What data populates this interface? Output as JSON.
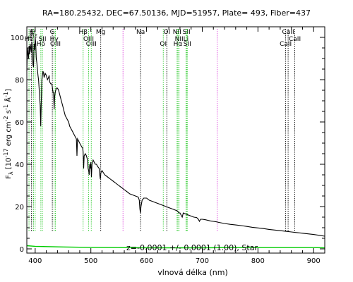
{
  "chart_data": {
    "type": "line",
    "title": "RA=180.25432, DEC=67.50136, MJD=51957, Plate=  493, Fiber=437",
    "xlabel": "vlnová délka (nm)",
    "ylabel_parts": {
      "main": "F",
      "sub": "λ",
      "rest": " [10",
      "exp1": "-17",
      "rest2": " erg cm",
      "exp2": "-2",
      "rest3": " s",
      "exp3": "-1",
      "rest4": " Å",
      "exp4": "-1",
      "rest5": "]"
    },
    "annotation": "z=-0.0001 +/- 0.0001 (1.00), Star",
    "xlim": [
      385,
      920
    ],
    "ylim": [
      -2,
      105
    ],
    "grid": false,
    "x_ticks": [
      400,
      500,
      600,
      700,
      800,
      900
    ],
    "y_ticks": [
      0,
      20,
      40,
      60,
      80,
      100
    ],
    "colors": {
      "spectrum": "#000000",
      "error": "#00cc00",
      "green_lines": "#33cc33",
      "magenta_lines": "#dd44dd",
      "black_lines": "#000000"
    },
    "series": [
      {
        "role": "spectrum",
        "points": [
          [
            385,
            84
          ],
          [
            386,
            95
          ],
          [
            388,
            90
          ],
          [
            389,
            96
          ],
          [
            390,
            92
          ],
          [
            391,
            97
          ],
          [
            393,
            93
          ],
          [
            394,
            98
          ],
          [
            395,
            95
          ],
          [
            396,
            87
          ],
          [
            397,
            86
          ],
          [
            398,
            97
          ],
          [
            399,
            94
          ],
          [
            400,
            100
          ],
          [
            401,
            97
          ],
          [
            402,
            90
          ],
          [
            403,
            88
          ],
          [
            404,
            85
          ],
          [
            405,
            82
          ],
          [
            406,
            80
          ],
          [
            407,
            76
          ],
          [
            408,
            72
          ],
          [
            409,
            68
          ],
          [
            410,
            58
          ],
          [
            411,
            70
          ],
          [
            412,
            80
          ],
          [
            413,
            82
          ],
          [
            414,
            84
          ],
          [
            415,
            83
          ],
          [
            416,
            81
          ],
          [
            418,
            83
          ],
          [
            420,
            82
          ],
          [
            422,
            80
          ],
          [
            424,
            81
          ],
          [
            425,
            82
          ],
          [
            426,
            79
          ],
          [
            428,
            78
          ],
          [
            430,
            78
          ],
          [
            431,
            76
          ],
          [
            432,
            74
          ],
          [
            433,
            74
          ],
          [
            434,
            66
          ],
          [
            435,
            72
          ],
          [
            436,
            74
          ],
          [
            438,
            76
          ],
          [
            440,
            76
          ],
          [
            442,
            75
          ],
          [
            445,
            72
          ],
          [
            446,
            71
          ],
          [
            448,
            69
          ],
          [
            450,
            67
          ],
          [
            452,
            65
          ],
          [
            454,
            63
          ],
          [
            456,
            62
          ],
          [
            458,
            61
          ],
          [
            460,
            60
          ],
          [
            462,
            58
          ],
          [
            464,
            57
          ],
          [
            466,
            56
          ],
          [
            468,
            55
          ],
          [
            470,
            54
          ],
          [
            472,
            53
          ],
          [
            474,
            52
          ],
          [
            475,
            44
          ],
          [
            476,
            52
          ],
          [
            478,
            51
          ],
          [
            480,
            50
          ],
          [
            482,
            49
          ],
          [
            484,
            48
          ],
          [
            485,
            48
          ],
          [
            486,
            46
          ],
          [
            487,
            38
          ],
          [
            488,
            44
          ],
          [
            490,
            45
          ],
          [
            492,
            44
          ],
          [
            494,
            42
          ],
          [
            495,
            38
          ],
          [
            496,
            37
          ],
          [
            497,
            35
          ],
          [
            498,
            40
          ],
          [
            499,
            38
          ],
          [
            500,
            41
          ],
          [
            501,
            34
          ],
          [
            502,
            40
          ],
          [
            503,
            41
          ],
          [
            504,
            42
          ],
          [
            506,
            41
          ],
          [
            508,
            40
          ],
          [
            510,
            40
          ],
          [
            512,
            39
          ],
          [
            515,
            38
          ],
          [
            516,
            35
          ],
          [
            517,
            33
          ],
          [
            518,
            36
          ],
          [
            520,
            37
          ],
          [
            525,
            35
          ],
          [
            530,
            34
          ],
          [
            535,
            33
          ],
          [
            540,
            32
          ],
          [
            545,
            31
          ],
          [
            550,
            30
          ],
          [
            555,
            29
          ],
          [
            560,
            28
          ],
          [
            565,
            27
          ],
          [
            570,
            26
          ],
          [
            575,
            25.5
          ],
          [
            580,
            25
          ],
          [
            585,
            24.5
          ],
          [
            587,
            23
          ],
          [
            588,
            19
          ],
          [
            589,
            17
          ],
          [
            590,
            20
          ],
          [
            592,
            23
          ],
          [
            595,
            24
          ],
          [
            597,
            24
          ],
          [
            600,
            24
          ],
          [
            605,
            23
          ],
          [
            610,
            22.5
          ],
          [
            615,
            22
          ],
          [
            620,
            21.5
          ],
          [
            625,
            21
          ],
          [
            630,
            20.5
          ],
          [
            635,
            20
          ],
          [
            640,
            19.5
          ],
          [
            645,
            19
          ],
          [
            650,
            18.5
          ],
          [
            655,
            18
          ],
          [
            658,
            17
          ],
          [
            660,
            17
          ],
          [
            662,
            16
          ],
          [
            664,
            15
          ],
          [
            666,
            17
          ],
          [
            670,
            16.5
          ],
          [
            675,
            16
          ],
          [
            680,
            15.5
          ],
          [
            685,
            15
          ],
          [
            690,
            14.8
          ],
          [
            693,
            14
          ],
          [
            695,
            13
          ],
          [
            697,
            14
          ],
          [
            700,
            14
          ],
          [
            705,
            13.8
          ],
          [
            710,
            13.5
          ],
          [
            715,
            13.2
          ],
          [
            720,
            13
          ],
          [
            725,
            12.8
          ],
          [
            730,
            12.5
          ],
          [
            740,
            12
          ],
          [
            750,
            11.6
          ],
          [
            760,
            11.3
          ],
          [
            770,
            11
          ],
          [
            780,
            10.6
          ],
          [
            790,
            10.2
          ],
          [
            800,
            9.9
          ],
          [
            810,
            9.6
          ],
          [
            820,
            9.2
          ],
          [
            830,
            8.9
          ],
          [
            840,
            8.6
          ],
          [
            850,
            8.3
          ],
          [
            860,
            8
          ],
          [
            870,
            7.7
          ],
          [
            880,
            7.4
          ],
          [
            890,
            7.1
          ],
          [
            900,
            6.8
          ],
          [
            910,
            6.4
          ],
          [
            920,
            6
          ]
        ]
      },
      {
        "role": "error",
        "points": [
          [
            385,
            1.5
          ],
          [
            400,
            1.2
          ],
          [
            450,
            0.9
          ],
          [
            500,
            0.7
          ],
          [
            550,
            0.6
          ],
          [
            600,
            0.5
          ],
          [
            650,
            0.5
          ],
          [
            700,
            0.5
          ],
          [
            750,
            0.6
          ],
          [
            800,
            0.6
          ],
          [
            850,
            0.6
          ],
          [
            900,
            0.6
          ],
          [
            920,
            0.5
          ]
        ]
      }
    ],
    "line_markers": [
      {
        "x": 388.9,
        "color": "green_lines",
        "label": "He",
        "row": 2
      },
      {
        "x": 393.4,
        "color": "black_lines",
        "label": "K",
        "row": 1
      },
      {
        "x": 396.8,
        "color": "black_lines",
        "label": "H",
        "row": 1
      },
      {
        "x": 397.0,
        "color": "green_lines",
        "label": "Hε",
        "row": 1.5
      },
      {
        "x": 400.0,
        "color": "green_lines",
        "label": "I",
        "row": 2
      },
      {
        "x": 410.2,
        "color": "green_lines",
        "label": "Hδ",
        "row": 2.7
      },
      {
        "x": 413.0,
        "color": "green_lines",
        "label": "SII",
        "row": 2
      },
      {
        "x": 430.8,
        "color": "black_lines",
        "label": "G",
        "row": 1
      },
      {
        "x": 434.0,
        "color": "green_lines",
        "label": "Hγ",
        "row": 2
      },
      {
        "x": 436.3,
        "color": "green_lines",
        "label": "OIII",
        "row": 2.7
      },
      {
        "x": 486.1,
        "color": "green_lines",
        "label": "Hβ",
        "row": 1
      },
      {
        "x": 495.9,
        "color": "green_lines",
        "label": "OIII",
        "row": 2
      },
      {
        "x": 500.7,
        "color": "green_lines",
        "label": "OIII",
        "row": 2.7
      },
      {
        "x": 517.7,
        "color": "black_lines",
        "label": "Mg",
        "row": 1
      },
      {
        "x": 557.7,
        "color": "magenta_lines",
        "label": "",
        "row": 0
      },
      {
        "x": 589.3,
        "color": "black_lines",
        "label": "Na",
        "row": 1
      },
      {
        "x": 630.0,
        "color": "green_lines",
        "label": "OI",
        "row": 2.7
      },
      {
        "x": 636.4,
        "color": "black_lines",
        "label": "OI",
        "row": 1
      },
      {
        "x": 654.8,
        "color": "green_lines",
        "label": "NII",
        "row": 1
      },
      {
        "x": 656.3,
        "color": "green_lines",
        "label": "Hα",
        "row": 2.7
      },
      {
        "x": 658.4,
        "color": "green_lines",
        "label": "NII",
        "row": 2
      },
      {
        "x": 670.8,
        "color": "green_lines",
        "label": "Li",
        "row": 2
      },
      {
        "x": 671.7,
        "color": "green_lines",
        "label": "SII",
        "row": 1
      },
      {
        "x": 673.1,
        "color": "green_lines",
        "label": "SII",
        "row": 2.7
      },
      {
        "x": 727.0,
        "color": "magenta_lines",
        "label": "",
        "row": 0
      },
      {
        "x": 849.8,
        "color": "black_lines",
        "label": "CaII",
        "row": 2.7
      },
      {
        "x": 854.2,
        "color": "black_lines",
        "label": "CaII",
        "row": 1
      },
      {
        "x": 866.2,
        "color": "black_lines",
        "label": "CaII",
        "row": 2
      }
    ]
  }
}
